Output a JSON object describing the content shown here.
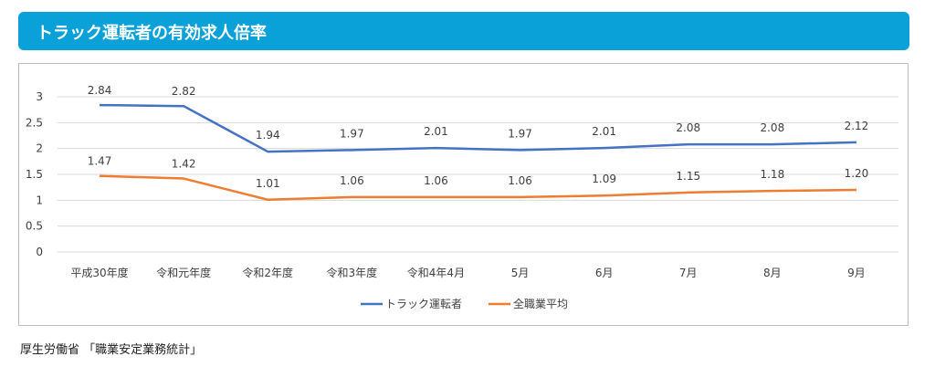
{
  "header": {
    "title": "トラック運転者の有効求人倍率"
  },
  "source": "厚生労働省 「職業安定業務統計」",
  "colors": {
    "header_bg": "#0aa0d8",
    "truck": "#4472c4",
    "all": "#ed7d31",
    "grid": "#d9d9d9"
  },
  "chart_data": {
    "type": "line",
    "title": "",
    "xlabel": "",
    "ylabel": "",
    "ylim": [
      0,
      3
    ],
    "yticks": [
      "0",
      "0.5",
      "1",
      "1.5",
      "2",
      "2.5",
      "3"
    ],
    "grid": true,
    "legend_position": "bottom",
    "categories": [
      "平成30年度",
      "令和元年度",
      "令和2年度",
      "令和3年度",
      "令和4年4月",
      "5月",
      "6月",
      "7月",
      "8月",
      "9月"
    ],
    "series": [
      {
        "name": "トラック運転者",
        "color": "#4472c4",
        "values": [
          2.84,
          2.82,
          1.94,
          1.97,
          2.01,
          1.97,
          2.01,
          2.08,
          2.08,
          2.12
        ],
        "labels": [
          "2.84",
          "2.82",
          "1.94",
          "1.97",
          "2.01",
          "1.97",
          "2.01",
          "2.08",
          "2.08",
          "2.12"
        ]
      },
      {
        "name": "全職業平均",
        "color": "#ed7d31",
        "values": [
          1.47,
          1.42,
          1.01,
          1.06,
          1.06,
          1.06,
          1.09,
          1.15,
          1.18,
          1.2
        ],
        "labels": [
          "1.47",
          "1.42",
          "1.01",
          "1.06",
          "1.06",
          "1.06",
          "1.09",
          "1.15",
          "1.18",
          "1.20"
        ]
      }
    ]
  }
}
